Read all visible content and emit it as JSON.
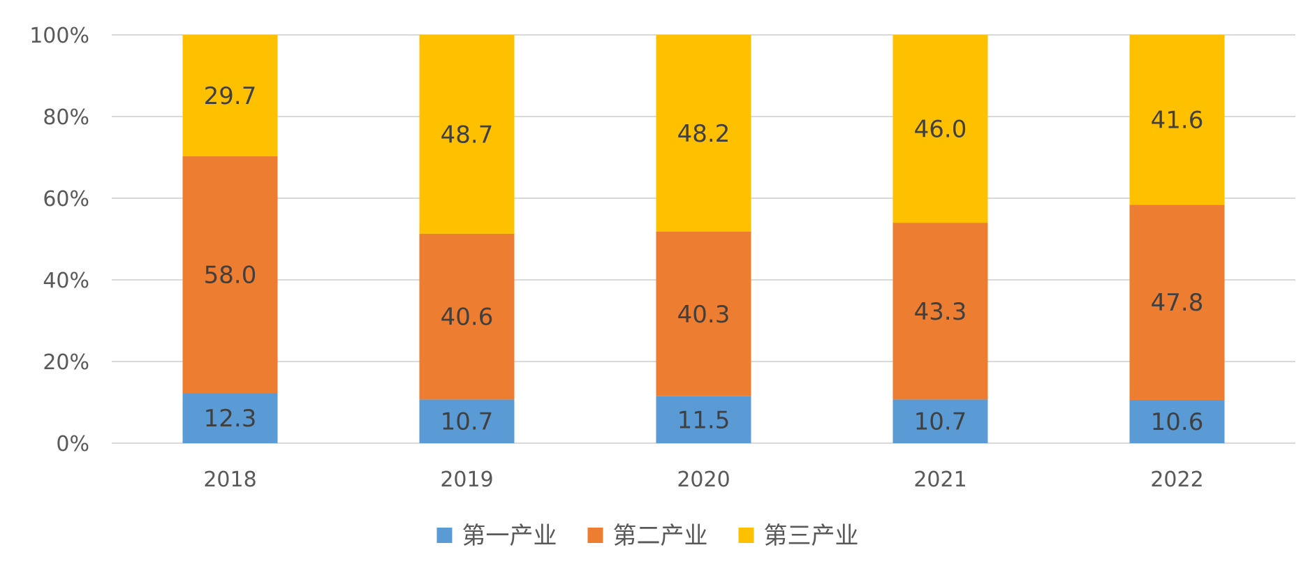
{
  "chart_data": {
    "type": "bar",
    "stacked": true,
    "percent_stacked": true,
    "categories": [
      "2018",
      "2019",
      "2020",
      "2021",
      "2022"
    ],
    "series": [
      {
        "name": "第一产业",
        "color": "#5b9bd5",
        "values": [
          12.3,
          10.7,
          11.5,
          10.7,
          10.6
        ]
      },
      {
        "name": "第二产业",
        "color": "#ed7d31",
        "values": [
          58.0,
          40.6,
          40.3,
          43.3,
          47.8
        ]
      },
      {
        "name": "第三产业",
        "color": "#ffc000",
        "values": [
          29.7,
          48.7,
          48.2,
          46.0,
          41.6
        ]
      }
    ],
    "y_ticks": [
      "0%",
      "20%",
      "40%",
      "60%",
      "80%",
      "100%"
    ],
    "ylim": [
      0,
      100
    ],
    "grid": true,
    "legend_position": "bottom",
    "title": "",
    "xlabel": "",
    "ylabel": ""
  }
}
